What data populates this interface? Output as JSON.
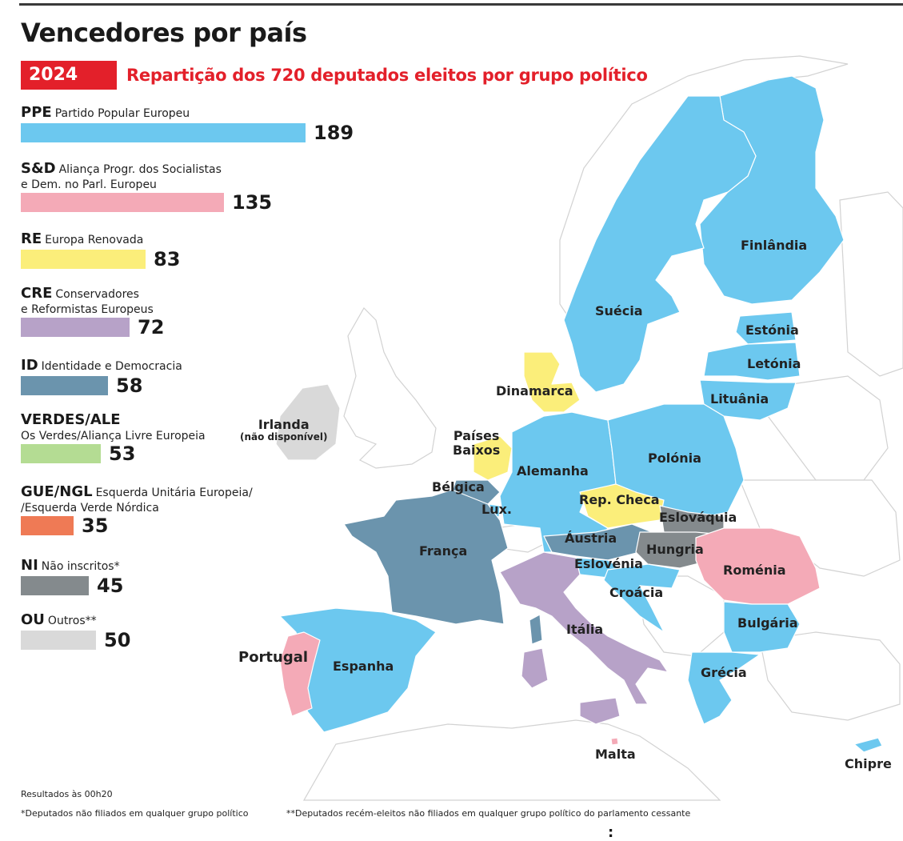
{
  "title": "Vencedores por país",
  "year": "2024",
  "subtitle": "Repartição dos 720 deputados eleitos por grupo político",
  "colors": {
    "PPE": "#6cc8ef",
    "SD": "#f4aab7",
    "RE": "#fbee7a",
    "CRE": "#b7a2c8",
    "ID": "#6b94ad",
    "VERDES": "#b4dc93",
    "GUE": "#ef7a55",
    "NI": "#848a8d",
    "OU": "#d9d9d9",
    "accent": "#e3202a"
  },
  "chart_data": {
    "type": "bar",
    "orientation": "horizontal",
    "categories": [
      "PPE",
      "S&D",
      "RE",
      "CRE",
      "ID",
      "VERDES/ALE",
      "GUE/NGL",
      "NI",
      "OU"
    ],
    "values": [
      189,
      135,
      83,
      72,
      58,
      53,
      35,
      45,
      50
    ],
    "title": "Repartição dos 720 deputados eleitos por grupo político",
    "xlabel": "",
    "ylabel": ""
  },
  "legend": [
    {
      "code": "PPE",
      "desc": "Partido Popular Europeu",
      "desc2": "",
      "value": "189",
      "color": "#6cc8ef"
    },
    {
      "code": "S&D",
      "desc": "Aliança Progr. dos Socialistas",
      "desc2": "e Dem. no Parl. Europeu",
      "value": "135",
      "color": "#f4aab7"
    },
    {
      "code": "RE",
      "desc": "Europa Renovada",
      "desc2": "",
      "value": "83",
      "color": "#fbee7a"
    },
    {
      "code": "CRE",
      "desc": "Conservadores",
      "desc2": "e Reformistas Europeus",
      "value": "72",
      "color": "#b7a2c8"
    },
    {
      "code": "ID",
      "desc": "Identidade e Democracia",
      "desc2": "",
      "value": "58",
      "color": "#6b94ad"
    },
    {
      "code": "VERDES/ALE",
      "desc": "",
      "desc2": "Os Verdes/Aliança Livre Europeia",
      "value": "53",
      "color": "#b4dc93"
    },
    {
      "code": "GUE/NGL",
      "desc": "Esquerda Unitária Europeia/",
      "desc2": "/Esquerda Verde Nórdica",
      "value": "35",
      "color": "#ef7a55"
    },
    {
      "code": "NI",
      "desc": "Não inscritos*",
      "desc2": "",
      "value": "45",
      "color": "#848a8d"
    },
    {
      "code": "OU",
      "desc": "Outros**",
      "desc2": "",
      "value": "50",
      "color": "#d9d9d9"
    }
  ],
  "countries": {
    "finlandia": {
      "label": "Finlândia",
      "group": "PPE"
    },
    "suecia": {
      "label": "Suécia",
      "group": "PPE"
    },
    "estonia": {
      "label": "Estónia",
      "group": "PPE"
    },
    "letonia": {
      "label": "Letónia",
      "group": "PPE"
    },
    "lituania": {
      "label": "Lituânia",
      "group": "PPE"
    },
    "dinamarca": {
      "label": "Dinamarca",
      "group": "RE"
    },
    "irlanda": {
      "label": "Irlanda",
      "label2": "(não disponível)",
      "group": "OU"
    },
    "paises_baixos": {
      "label": "Países",
      "label2": "Baixos",
      "group": "RE"
    },
    "belgica": {
      "label": "Bélgica",
      "group": "ID"
    },
    "lux": {
      "label": "Lux.",
      "group": "PPE"
    },
    "alemanha": {
      "label": "Alemanha",
      "group": "PPE"
    },
    "polonia": {
      "label": "Polónia",
      "group": "PPE"
    },
    "rep_checa": {
      "label": "Rep. Checa",
      "group": "RE"
    },
    "eslovaquia": {
      "label": "Eslováquia",
      "group": "NI"
    },
    "austria": {
      "label": "Áustria",
      "group": "ID"
    },
    "hungria": {
      "label": "Hungria",
      "group": "NI"
    },
    "eslovenia": {
      "label": "Eslovénia",
      "group": "PPE"
    },
    "croacia": {
      "label": "Croácia",
      "group": "PPE"
    },
    "romenia": {
      "label": "Roménia",
      "group": "S&D"
    },
    "franca": {
      "label": "França",
      "group": "ID"
    },
    "italia": {
      "label": "Itália",
      "group": "CRE"
    },
    "bulgaria": {
      "label": "Bulgária",
      "group": "PPE"
    },
    "grecia": {
      "label": "Grécia",
      "group": "PPE"
    },
    "portugal": {
      "label": "Portugal",
      "group": "S&D"
    },
    "espanha": {
      "label": "Espanha",
      "group": "PPE"
    },
    "malta": {
      "label": "Malta",
      "group": "S&D"
    },
    "chipre": {
      "label": "Chipre",
      "group": "PPE"
    }
  },
  "footer": {
    "results": "Resultados às 00h20",
    "note1": "*Deputados não filiados em qualquer grupo político",
    "note2": "**Deputados recém-eleitos não filiados em qualquer grupo político do parlamento cessante",
    "dots": ":"
  }
}
